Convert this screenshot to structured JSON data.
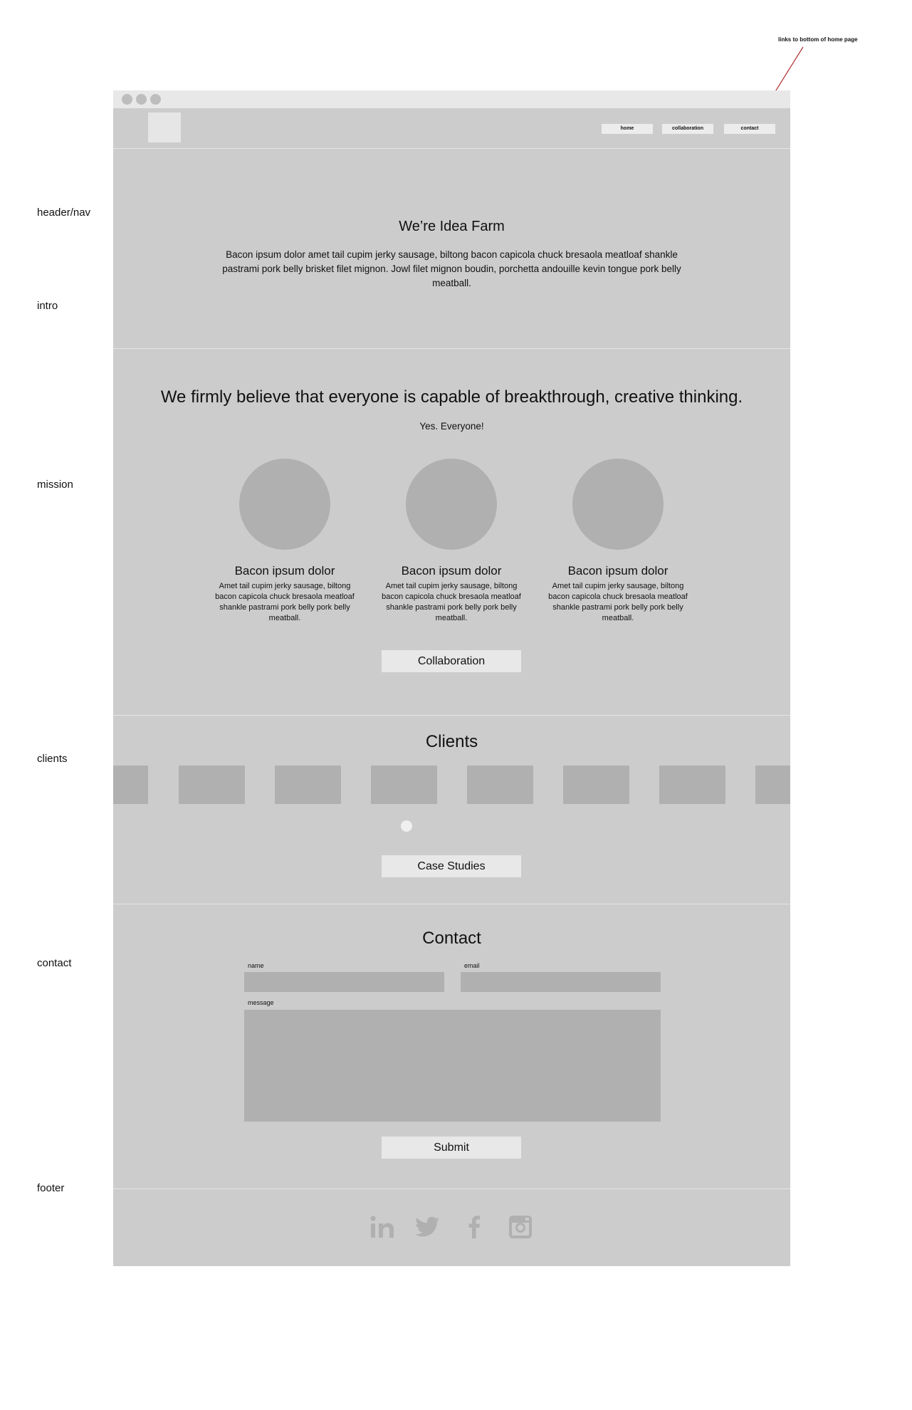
{
  "annotation": {
    "text": "links to bottom of home page"
  },
  "section_labels": [
    "header/nav",
    "intro",
    "mission",
    "clients",
    "contact",
    "footer"
  ],
  "nav": {
    "items": [
      "home",
      "collaboration",
      "contact"
    ]
  },
  "intro": {
    "title": "We’re Idea Farm",
    "body": "Bacon ipsum dolor amet tail cupim jerky sausage, biltong bacon capicola chuck bresaola meatloaf shankle pastrami pork belly brisket filet mignon. Jowl filet mignon boudin, porchetta andouille kevin tongue pork belly meatball."
  },
  "mission": {
    "title": "We firmly believe that everyone is capable of breakthrough, creative thinking.",
    "subtitle": "Yes. Everyone!",
    "columns": [
      {
        "title": "Bacon ipsum dolor",
        "body": "Amet tail cupim jerky sausage, biltong bacon capicola chuck bresaola meatloaf shankle pastrami pork belly pork belly meatball."
      },
      {
        "title": "Bacon ipsum dolor",
        "body": "Amet tail cupim jerky sausage, biltong bacon capicola chuck bresaola meatloaf shankle pastrami pork belly pork belly meatball."
      },
      {
        "title": "Bacon ipsum dolor",
        "body": "Amet tail cupim jerky sausage, biltong bacon capicola chuck bresaola meatloaf shankle pastrami pork belly pork belly meatball."
      }
    ],
    "button": "Collaboration"
  },
  "clients": {
    "title": "Clients",
    "button": "Case Studies"
  },
  "contact": {
    "title": "Contact",
    "name_label": "name",
    "email_label": "email",
    "message_label": "message",
    "submit": "Submit"
  },
  "footer": {
    "icons": [
      "linkedin-icon",
      "twitter-icon",
      "facebook-icon",
      "instagram-icon"
    ]
  },
  "colors": {
    "page_bg": "#ffffff",
    "wireframe_bg": "#cccccc",
    "placeholder": "#b0b0b0",
    "button_bg": "#e8e8e8",
    "annotation_line": "#b03030"
  }
}
